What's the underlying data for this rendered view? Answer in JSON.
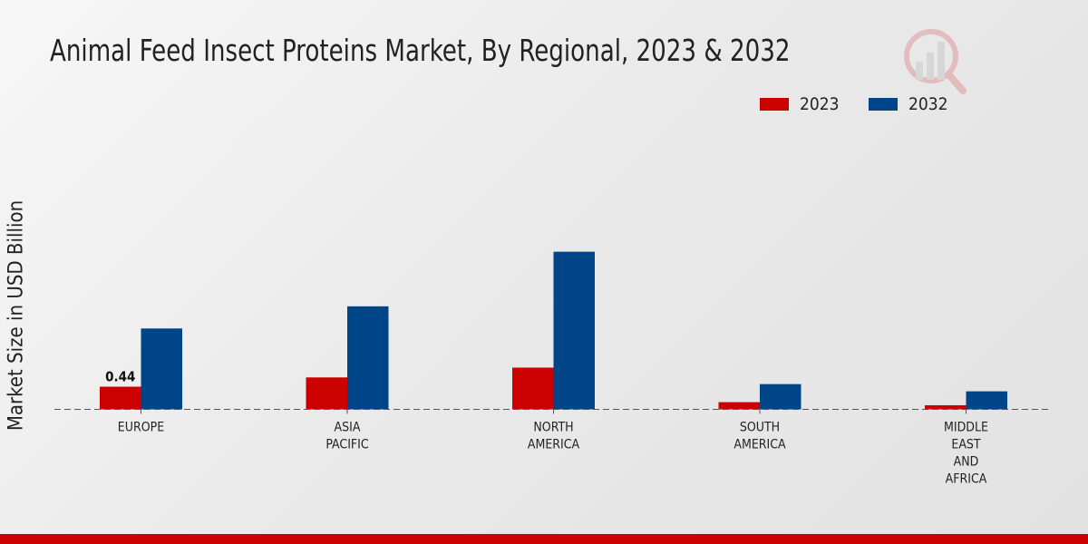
{
  "chart_data": {
    "type": "bar",
    "title": "Animal Feed Insect Proteins Market, By Regional, 2023 & 2032",
    "xlabel": "",
    "ylabel": "Market Size in USD Billion",
    "ylim": [
      0,
      3.5
    ],
    "grid": false,
    "legend_position": "top-right",
    "categories": [
      [
        "EUROPE"
      ],
      [
        "ASIA",
        "PACIFIC"
      ],
      [
        "NORTH",
        "AMERICA"
      ],
      [
        "SOUTH",
        "AMERICA"
      ],
      [
        "MIDDLE",
        "EAST",
        "AND",
        "AFRICA"
      ]
    ],
    "series": [
      {
        "name": "2023",
        "color": "#cc0000",
        "values": [
          0.44,
          0.62,
          0.81,
          0.14,
          0.08
        ]
      },
      {
        "name": "2032",
        "color": "#004587",
        "values": [
          1.57,
          2.0,
          3.06,
          0.49,
          0.35
        ]
      }
    ],
    "data_labels": [
      {
        "series": 0,
        "index": 0,
        "text": "0.44"
      }
    ]
  }
}
